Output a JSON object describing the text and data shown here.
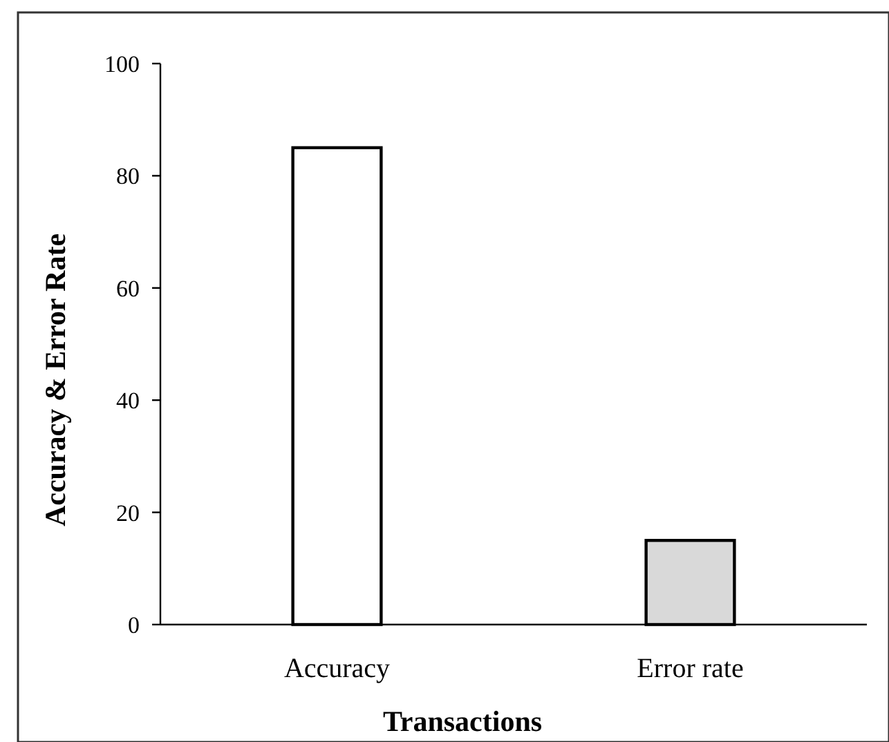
{
  "chart_data": {
    "type": "bar",
    "xlabel": "Transactions",
    "ylabel": "Accuracy & Error Rate",
    "categories": [
      "Accuracy",
      "Error rate"
    ],
    "values": [
      85,
      15
    ],
    "colors": [
      "#ffffff",
      "#d9d9d9"
    ],
    "ylim": [
      0,
      100
    ],
    "yticks": [
      0,
      20,
      40,
      60,
      80,
      100
    ],
    "grid": false
  }
}
